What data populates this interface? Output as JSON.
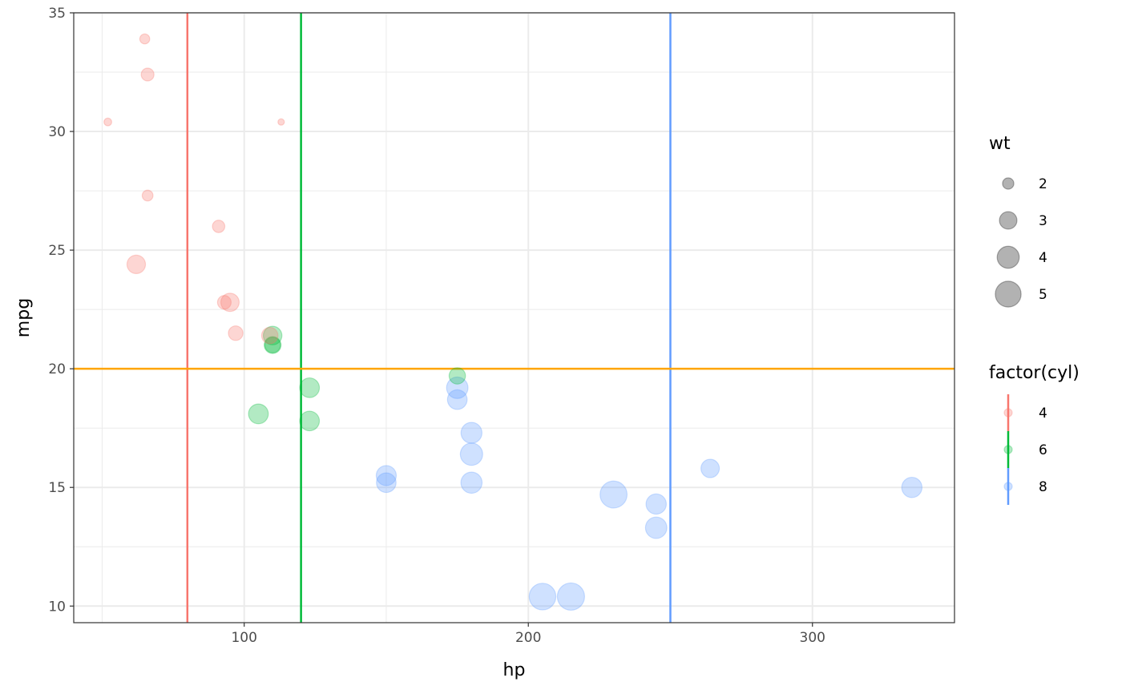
{
  "chart_data": {
    "type": "scatter",
    "xlabel": "hp",
    "ylabel": "mpg",
    "xlim": [
      40,
      350
    ],
    "ylim": [
      9.3,
      35
    ],
    "x_ticks": [
      100,
      200,
      300
    ],
    "y_ticks": [
      10,
      15,
      20,
      25,
      30,
      35
    ],
    "grid": true,
    "colors": {
      "4": "#F8766D",
      "6": "#00BA38",
      "8": "#619CFF",
      "hline": "#FFA500"
    },
    "hlines": [
      {
        "y": 20,
        "color": "#FFA500"
      }
    ],
    "vlines": [
      {
        "x": 80,
        "color": "#F8766D"
      },
      {
        "x": 120,
        "color": "#00BA38"
      },
      {
        "x": 250,
        "color": "#619CFF"
      }
    ],
    "point_alpha": 0.3,
    "size_legend": {
      "title": "wt",
      "entries": [
        {
          "label": "2",
          "value": 2
        },
        {
          "label": "3",
          "value": 3
        },
        {
          "label": "4",
          "value": 4
        },
        {
          "label": "5",
          "value": 5
        }
      ]
    },
    "color_legend": {
      "title": "factor(cyl)",
      "entries": [
        {
          "label": "4",
          "color": "#F8766D"
        },
        {
          "label": "6",
          "color": "#00BA38"
        },
        {
          "label": "8",
          "color": "#619CFF"
        }
      ]
    },
    "points": [
      {
        "hp": 110,
        "mpg": 21.0,
        "wt": 2.62,
        "cyl": "6"
      },
      {
        "hp": 110,
        "mpg": 21.0,
        "wt": 2.875,
        "cyl": "6"
      },
      {
        "hp": 93,
        "mpg": 22.8,
        "wt": 2.32,
        "cyl": "4"
      },
      {
        "hp": 110,
        "mpg": 21.4,
        "wt": 3.215,
        "cyl": "6"
      },
      {
        "hp": 175,
        "mpg": 18.7,
        "wt": 3.44,
        "cyl": "8"
      },
      {
        "hp": 105,
        "mpg": 18.1,
        "wt": 3.46,
        "cyl": "6"
      },
      {
        "hp": 245,
        "mpg": 14.3,
        "wt": 3.57,
        "cyl": "8"
      },
      {
        "hp": 62,
        "mpg": 24.4,
        "wt": 3.19,
        "cyl": "4"
      },
      {
        "hp": 95,
        "mpg": 22.8,
        "wt": 3.15,
        "cyl": "4"
      },
      {
        "hp": 123,
        "mpg": 19.2,
        "wt": 3.44,
        "cyl": "6"
      },
      {
        "hp": 123,
        "mpg": 17.8,
        "wt": 3.44,
        "cyl": "6"
      },
      {
        "hp": 180,
        "mpg": 16.4,
        "wt": 4.07,
        "cyl": "8"
      },
      {
        "hp": 180,
        "mpg": 17.3,
        "wt": 3.73,
        "cyl": "8"
      },
      {
        "hp": 180,
        "mpg": 15.2,
        "wt": 3.78,
        "cyl": "8"
      },
      {
        "hp": 205,
        "mpg": 10.4,
        "wt": 5.25,
        "cyl": "8"
      },
      {
        "hp": 215,
        "mpg": 10.4,
        "wt": 5.424,
        "cyl": "8"
      },
      {
        "hp": 230,
        "mpg": 14.7,
        "wt": 5.345,
        "cyl": "8"
      },
      {
        "hp": 66,
        "mpg": 32.4,
        "wt": 2.2,
        "cyl": "4"
      },
      {
        "hp": 52,
        "mpg": 30.4,
        "wt": 1.615,
        "cyl": "4"
      },
      {
        "hp": 65,
        "mpg": 33.9,
        "wt": 1.835,
        "cyl": "4"
      },
      {
        "hp": 97,
        "mpg": 21.5,
        "wt": 2.465,
        "cyl": "4"
      },
      {
        "hp": 150,
        "mpg": 15.5,
        "wt": 3.52,
        "cyl": "8"
      },
      {
        "hp": 150,
        "mpg": 15.2,
        "wt": 3.435,
        "cyl": "8"
      },
      {
        "hp": 245,
        "mpg": 13.3,
        "wt": 3.84,
        "cyl": "8"
      },
      {
        "hp": 175,
        "mpg": 19.2,
        "wt": 3.845,
        "cyl": "8"
      },
      {
        "hp": 66,
        "mpg": 27.3,
        "wt": 1.935,
        "cyl": "4"
      },
      {
        "hp": 91,
        "mpg": 26.0,
        "wt": 2.14,
        "cyl": "4"
      },
      {
        "hp": 113,
        "mpg": 30.4,
        "wt": 1.513,
        "cyl": "4"
      },
      {
        "hp": 264,
        "mpg": 15.8,
        "wt": 3.17,
        "cyl": "8"
      },
      {
        "hp": 175,
        "mpg": 19.7,
        "wt": 2.77,
        "cyl": "6"
      },
      {
        "hp": 335,
        "mpg": 15.0,
        "wt": 3.57,
        "cyl": "8"
      },
      {
        "hp": 109,
        "mpg": 21.4,
        "wt": 2.78,
        "cyl": "4"
      }
    ]
  }
}
